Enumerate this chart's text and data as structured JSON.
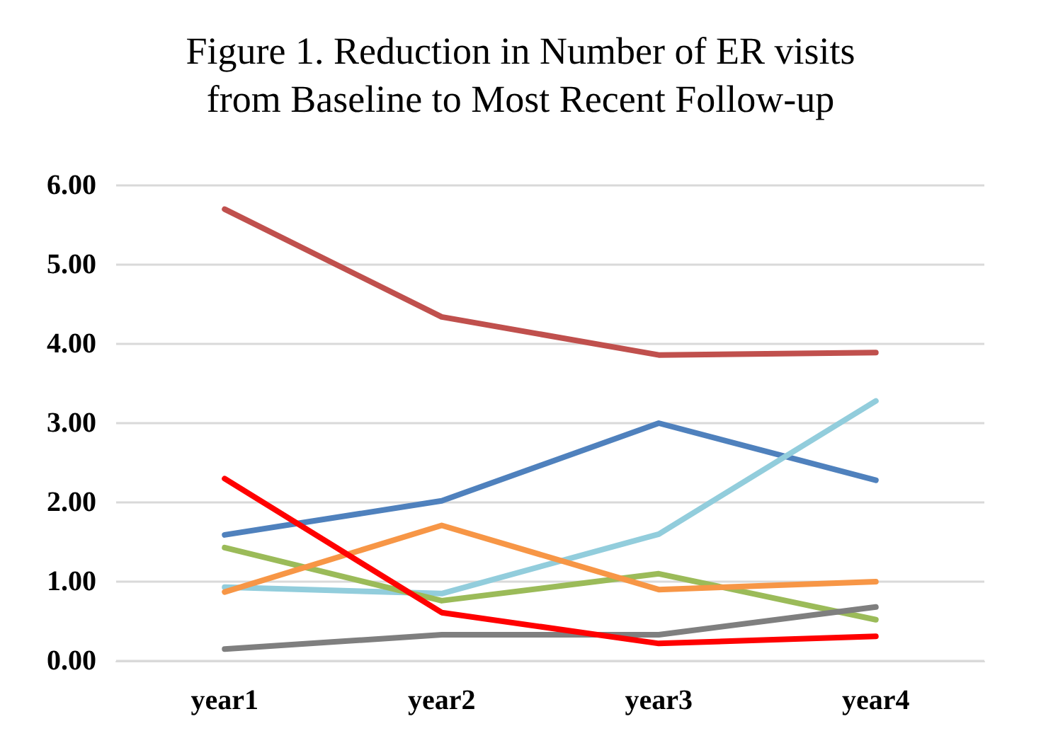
{
  "chart_data": {
    "type": "line",
    "title": "Figure 1. Reduction in Number of ER visits\nfrom Baseline to Most Recent Follow-up",
    "categories": [
      "year1",
      "year2",
      "year3",
      "year4"
    ],
    "series": [
      {
        "color": "#c0504d",
        "values": [
          5.7,
          4.34,
          3.86,
          3.89
        ]
      },
      {
        "color": "#4f81bd",
        "values": [
          1.59,
          2.02,
          3.0,
          2.28
        ]
      },
      {
        "color": "#92cddc",
        "values": [
          0.93,
          0.85,
          1.6,
          3.28
        ]
      },
      {
        "color": "#9bbb59",
        "values": [
          1.43,
          0.76,
          1.1,
          0.52
        ]
      },
      {
        "color": "#f79646",
        "values": [
          0.87,
          1.71,
          0.9,
          1.0
        ]
      },
      {
        "color": "#7f7f7f",
        "values": [
          0.15,
          0.33,
          0.33,
          0.68
        ]
      },
      {
        "color": "#ff0000",
        "values": [
          2.3,
          0.61,
          0.22,
          0.31
        ]
      }
    ],
    "ylim": [
      0,
      6
    ],
    "yticks": [
      {
        "value": 0,
        "label": "0.00"
      },
      {
        "value": 1,
        "label": "1.00"
      },
      {
        "value": 2,
        "label": "2.00"
      },
      {
        "value": 3,
        "label": "3.00"
      },
      {
        "value": 4,
        "label": "4.00"
      },
      {
        "value": 5,
        "label": "5.00"
      },
      {
        "value": 6,
        "label": "6.00"
      }
    ],
    "grid": "y",
    "marker": "none",
    "line_style": "solid"
  }
}
